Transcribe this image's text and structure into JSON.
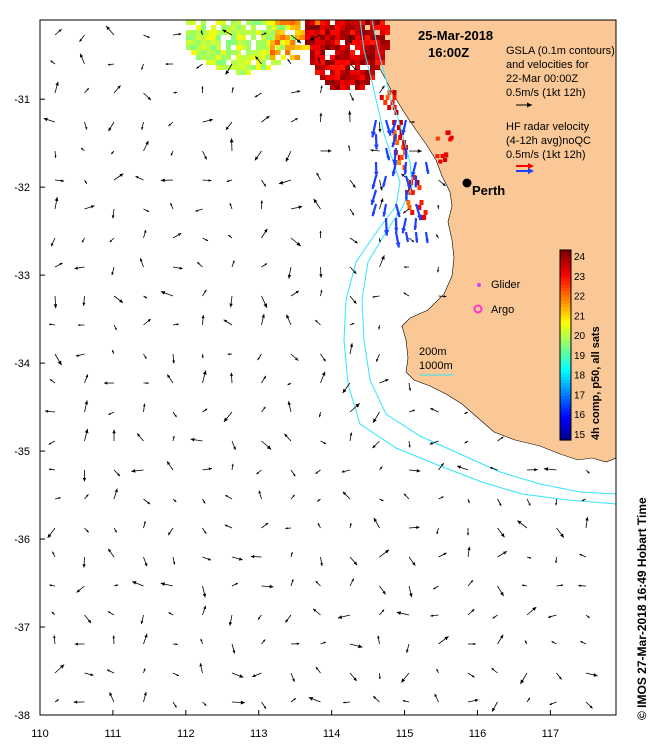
{
  "chart_data": {
    "type": "map",
    "lon_range": [
      110,
      117.9
    ],
    "lat_range": [
      -38,
      -30.1
    ],
    "x_ticks": [
      110,
      111,
      112,
      113,
      114,
      115,
      116,
      117
    ],
    "y_ticks": [
      -31,
      -32,
      -33,
      -34,
      -35,
      -36,
      -37,
      -38
    ],
    "x_tick_labels": [
      "110",
      "111",
      "112",
      "113",
      "114",
      "115",
      "116",
      "117"
    ],
    "y_tick_labels": [
      "-31",
      "-32",
      "-33",
      "-34",
      "-35",
      "-36",
      "-37",
      "-38"
    ],
    "date": "25-Mar-2018",
    "time": "16:00Z",
    "gsla_label": "GSLA (0.1m contours)",
    "gsla_label2": "and velocities for",
    "gsla_time": "22-Mar 00:00Z",
    "gsla_scale": "0.5m/s (1kt 12h)",
    "hf_label": "HF radar velocity",
    "hf_label2": "(4-12h avg)noQC",
    "hf_scale": "0.5m/s (1kt 12h)",
    "city": {
      "name": "Perth",
      "lon": 115.86,
      "lat": -31.95
    },
    "legend_glider": "Glider",
    "legend_argo": "Argo",
    "contour_200": "200m",
    "contour_1000": "1000m",
    "colorbar": {
      "label": "4h comp, p50, all sats",
      "min": 15,
      "max": 24,
      "ticks": [
        "24",
        "23",
        "22",
        "21",
        "20",
        "19",
        "18",
        "17",
        "16",
        "15"
      ]
    },
    "credit": "© IMOS 27-Mar-2018 16:49 Hobart Time",
    "colors": {
      "land": "#fac896",
      "bathy": "#33e5ff",
      "hf_blue": "#1f3fff",
      "hf_red": "#ff0000",
      "glider": "#cc44ff",
      "argo": "#ff33cc"
    }
  }
}
